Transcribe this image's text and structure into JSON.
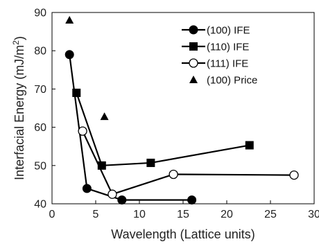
{
  "chart_data": {
    "type": "scatter",
    "xlabel": "Wavelength (Lattice units)",
    "ylabel_main": "Interfacial Energy (mJ/m",
    "ylabel_sup": "2",
    "ylabel_close": ")",
    "xlim": [
      0,
      30
    ],
    "ylim": [
      40,
      90
    ],
    "xticks": [
      0,
      5,
      10,
      15,
      20,
      25,
      30
    ],
    "yticks": [
      40,
      50,
      60,
      70,
      80,
      90
    ],
    "grid": false,
    "legend_position": "top-right",
    "series": [
      {
        "name": "(100) IFE",
        "marker": "filled-circle",
        "line": true,
        "color": "#000000",
        "points": [
          [
            2.0,
            79.0
          ],
          [
            4.0,
            44.0
          ],
          [
            8.0,
            41.0
          ],
          [
            16.0,
            41.0
          ]
        ]
      },
      {
        "name": "(110) IFE",
        "marker": "filled-square",
        "line": true,
        "color": "#000000",
        "points": [
          [
            2.8,
            69.0
          ],
          [
            5.7,
            50.0
          ],
          [
            11.3,
            50.7
          ],
          [
            22.6,
            55.3
          ]
        ]
      },
      {
        "name": "(111) IFE",
        "marker": "open-circle",
        "line": true,
        "color": "#000000",
        "points": [
          [
            3.5,
            59.0
          ],
          [
            6.9,
            42.5
          ],
          [
            13.9,
            47.7
          ],
          [
            27.7,
            47.5
          ]
        ]
      },
      {
        "name": "(100) Price",
        "marker": "filled-triangle",
        "line": false,
        "color": "#000000",
        "points": [
          [
            2.0,
            88.0
          ],
          [
            6.0,
            62.8
          ]
        ]
      }
    ]
  }
}
